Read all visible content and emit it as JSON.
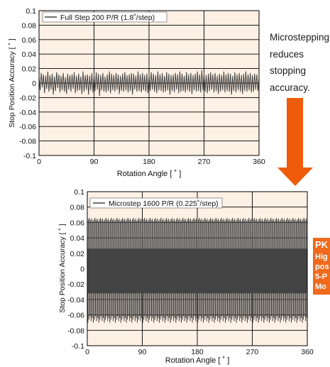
{
  "caption": {
    "text": "Microstepping\nreduces\nstopping\naccuracy."
  },
  "badge": {
    "title": "PK",
    "text": "Hig\npos\n5-P\nMo"
  },
  "style": {
    "plot_background": "#fdf0e4",
    "trace_color": "#444444",
    "grid_color": "#000000",
    "arrow_color": "#ee5c0b",
    "badge_color": "#ef6a1c",
    "legend_box_color": "#ffffff"
  },
  "chart_data": [
    {
      "type": "line",
      "legend": "Full Step 200 P/R (1.8˚/step)",
      "xlabel": "Rotation Angle [ ˚ ]",
      "ylabel": "Stop Position Accuracy [ ˚ ]",
      "xlim": [
        0,
        360
      ],
      "ylim": [
        -0.1,
        0.1
      ],
      "xticks": [
        "0",
        "90",
        "180",
        "270",
        "360"
      ],
      "yticks": [
        "0.1",
        "0.08",
        "0.06",
        "0.04",
        "0.02",
        "0",
        "-0.02",
        "-0.04",
        "-0.06",
        "-0.08",
        "-0.1"
      ],
      "grid": true,
      "legend_position": "top-left",
      "step_deg": 1.8,
      "series": [
        {
          "x": [
            0,
            1.8,
            3.6,
            5.4,
            7.2,
            9,
            10.8,
            12.6,
            14.4,
            16.2,
            18,
            19.8,
            21.6,
            23.4,
            25.2,
            27,
            28.8,
            30.6,
            32.4,
            34.2,
            36,
            37.8,
            39.6,
            41.4,
            43.2,
            45,
            46.8,
            48.6,
            50.4,
            52.2,
            54,
            55.8,
            57.6,
            59.4,
            61.2,
            63,
            64.8,
            66.6,
            68.4,
            70.2,
            72,
            73.8,
            75.6,
            77.4,
            79.2,
            81,
            82.8,
            84.6,
            86.4,
            88.2,
            90,
            91.8,
            93.6,
            95.4,
            97.2,
            99,
            100.8,
            102.6,
            104.4,
            106.2,
            108,
            109.8,
            111.6,
            113.4,
            115.2,
            117,
            118.8,
            120.6,
            122.4,
            124.2,
            126,
            127.8,
            129.6,
            131.4,
            133.2,
            135,
            136.8,
            138.6,
            140.4,
            142.2,
            144,
            145.8,
            147.6,
            149.4,
            151.2,
            153,
            154.8,
            156.6,
            158.4,
            160.2,
            162,
            163.8,
            165.6,
            167.4,
            169.2,
            171,
            172.8,
            174.6,
            176.4,
            178.2,
            180,
            181.8,
            183.6,
            185.4,
            187.2,
            189,
            190.8,
            192.6,
            194.4,
            196.2,
            198,
            199.8,
            201.6,
            203.4,
            205.2,
            207,
            208.8,
            210.6,
            212.4,
            214.2,
            216,
            217.8,
            219.6,
            221.4,
            223.2,
            225,
            226.8,
            228.6,
            230.4,
            232.2,
            234,
            235.8,
            237.6,
            239.4,
            241.2,
            243,
            244.8,
            246.6,
            248.4,
            250.2,
            252,
            253.8,
            255.6,
            257.4,
            259.2,
            261,
            262.8,
            264.6,
            266.4,
            268.2,
            270,
            271.8,
            273.6,
            275.4,
            277.2,
            279,
            280.8,
            282.6,
            284.4,
            286.2,
            288,
            289.8,
            291.6,
            293.4,
            295.2,
            297,
            298.8,
            300.6,
            302.4,
            304.2,
            306,
            307.8,
            309.6,
            311.4,
            313.2,
            315,
            316.8,
            318.6,
            320.4,
            322.2,
            324,
            325.8,
            327.6,
            329.4,
            331.2,
            333,
            334.8,
            336.6,
            338.4,
            340.2,
            342,
            343.8,
            345.6,
            347.4,
            349.2,
            351,
            352.8,
            354.6,
            356.4,
            358.2,
            360
          ],
          "y": [
            0.008,
            -0.01,
            0.014,
            -0.006,
            0.012,
            -0.014,
            0.01,
            -0.008,
            0.016,
            -0.012,
            0.011,
            -0.009,
            0.013,
            -0.016,
            0.009,
            -0.011,
            0.015,
            -0.007,
            0.012,
            -0.013,
            0.01,
            -0.01,
            0.014,
            -0.012,
            0.008,
            -0.015,
            0.013,
            -0.009,
            0.011,
            -0.012,
            0.012,
            -0.008,
            0.015,
            -0.014,
            0.01,
            -0.011,
            0.013,
            -0.01,
            0.009,
            -0.015,
            0.016,
            -0.012,
            0.011,
            -0.009,
            0.012,
            -0.016,
            0.01,
            -0.01,
            0.014,
            -0.013,
            0.012,
            -0.011,
            0.015,
            -0.009,
            0.013,
            -0.018,
            0.011,
            -0.01,
            0.014,
            -0.012,
            0.009,
            -0.013,
            0.012,
            -0.011,
            0.016,
            -0.014,
            0.013,
            -0.01,
            0.011,
            -0.012,
            0.014,
            -0.009,
            0.012,
            -0.015,
            0.01,
            -0.011,
            0.013,
            -0.012,
            0.015,
            -0.01,
            0.011,
            -0.013,
            0.012,
            -0.011,
            0.014,
            -0.016,
            0.013,
            -0.009,
            0.01,
            -0.012,
            0.016,
            -0.011,
            0.012,
            -0.013,
            0.014,
            -0.01,
            0.011,
            -0.012,
            0.013,
            -0.014,
            0.012,
            -0.011,
            0.015,
            -0.009,
            0.013,
            -0.012,
            0.011,
            -0.014,
            0.016,
            -0.01,
            0.012,
            -0.011,
            0.014,
            -0.013,
            0.01,
            -0.012,
            0.015,
            -0.01,
            0.013,
            -0.016,
            0.011,
            -0.011,
            0.012,
            -0.013,
            0.014,
            -0.009,
            0.012,
            -0.014,
            0.016,
            -0.012,
            0.013,
            -0.011,
            0.01,
            -0.013,
            0.015,
            -0.01,
            0.012,
            -0.012,
            0.014,
            -0.015,
            0.011,
            -0.01,
            0.013,
            -0.012,
            0.016,
            -0.011,
            0.012,
            -0.013,
            0.018,
            -0.01,
            0.014,
            -0.012,
            0.011,
            -0.014,
            0.013,
            -0.011,
            0.015,
            -0.009,
            0.012,
            -0.013,
            0.014,
            -0.011,
            0.01,
            -0.015,
            0.013,
            -0.012,
            0.011,
            -0.01,
            0.016,
            -0.013,
            0.012,
            -0.011,
            0.014,
            -0.012,
            0.013,
            -0.016,
            0.01,
            -0.011,
            0.015,
            -0.013,
            0.012,
            -0.01,
            0.014,
            -0.012,
            0.011,
            -0.015,
            0.013,
            -0.011,
            0.016,
            -0.012,
            0.012,
            -0.01,
            0.014,
            -0.013,
            0.011,
            -0.012,
            0.013,
            -0.009,
            0.012,
            -0.011,
            0.008
          ]
        }
      ]
    },
    {
      "type": "line",
      "legend": "Microstep 1600 P/R (0.225˚/step)",
      "xlabel": "Rotation Angle [ ˚ ]",
      "ylabel": "Stop Position Accuracy [ ˚ ]",
      "xlim": [
        0,
        360
      ],
      "ylim": [
        -0.1,
        0.1
      ],
      "xticks": [
        "0",
        "90",
        "180",
        "270",
        "360"
      ],
      "yticks": [
        "0.1",
        "0.08",
        "0.06",
        "0.04",
        "0.02",
        "0",
        "-0.02",
        "-0.04",
        "-0.06",
        "-0.08",
        "-0.1"
      ],
      "grid": true,
      "legend_position": "top-left",
      "step_deg": 0.225,
      "envelope": {
        "outer_max": 0.066,
        "outer_min": -0.07,
        "typical_max": 0.062,
        "typical_min": -0.062,
        "dense_band": [
          -0.032,
          0.026
        ],
        "full_step_period_deg": 1.8
      }
    }
  ]
}
